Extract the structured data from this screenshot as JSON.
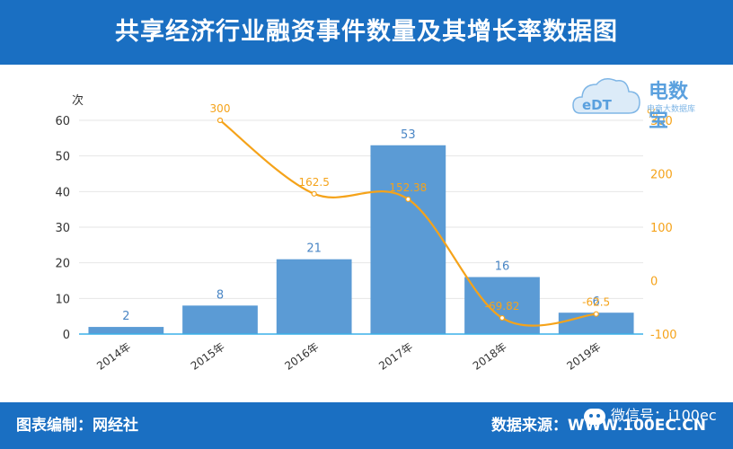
{
  "title": "共享经济行业融资事件数量及其增长率数据图",
  "footer": {
    "left": "图表编制：网经社",
    "right": "数据来源：WWW.100EC.CN",
    "wechat": "微信号：i100ec"
  },
  "logo": {
    "main": "电数宝",
    "sub": "电商大数据库",
    "mark": "eDT"
  },
  "chart_data": {
    "type": "bar",
    "categories": [
      "2014年",
      "2015年",
      "2016年",
      "2017年",
      "2018年",
      "2019年"
    ],
    "series": [
      {
        "type": "bar",
        "values": [
          2,
          8,
          21,
          53,
          16,
          6
        ],
        "color": "#5b9bd5",
        "axis": "left"
      },
      {
        "type": "line",
        "values": [
          null,
          300,
          162.5,
          152.38,
          -69.82,
          -62.5
        ],
        "labels": [
          "",
          "300",
          "162.5",
          "152.38",
          "-69.82",
          "-62.5"
        ],
        "color": "#f5a31a",
        "axis": "right"
      }
    ],
    "ylabel": "次",
    "ylabel_right": "%",
    "ylim": [
      0,
      60
    ],
    "y_ticks": [
      "0",
      "10",
      "20",
      "30",
      "40",
      "50",
      "60"
    ],
    "ylim_right": [
      -100,
      300
    ],
    "y_ticks_right": [
      "-100",
      "0",
      "100",
      "200",
      "300"
    ],
    "grid": true,
    "bar_label_color": "#4a86c5",
    "axis_line_color": "#3bb0e8"
  }
}
